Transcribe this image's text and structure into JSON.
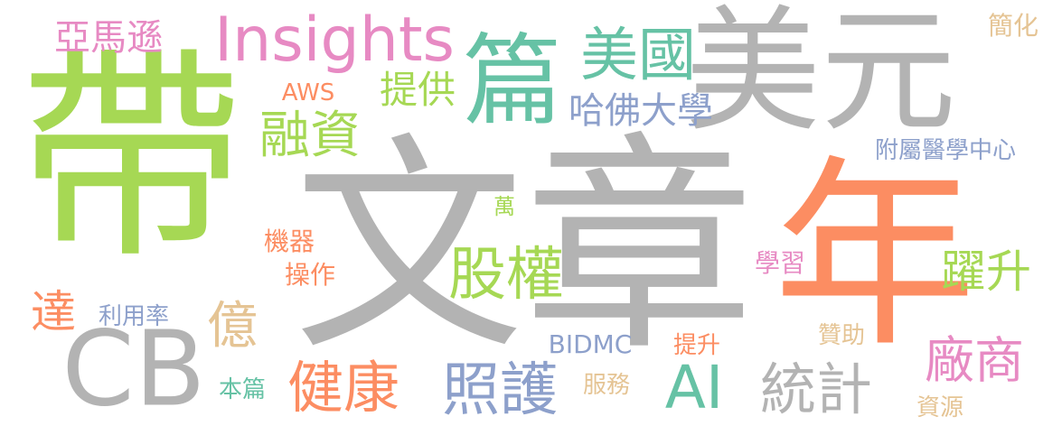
{
  "words": [
    {
      "text": "文章",
      "color": "#b3b3b3"
    },
    {
      "text": "帶",
      "color": "#a6d854"
    },
    {
      "text": "年",
      "color": "#fc8d62"
    },
    {
      "text": "美元",
      "color": "#b3b3b3"
    },
    {
      "text": "篇",
      "color": "#66c2a5"
    },
    {
      "text": "CB",
      "color": "#b3b3b3"
    },
    {
      "text": "Insights",
      "color": "#e78ac3"
    },
    {
      "text": "美國",
      "color": "#66c2a5"
    },
    {
      "text": "股權",
      "color": "#a6d854"
    },
    {
      "text": "照護",
      "color": "#8da0cb"
    },
    {
      "text": "健康",
      "color": "#fc8d62"
    },
    {
      "text": "統計",
      "color": "#b3b3b3"
    },
    {
      "text": "AI",
      "color": "#66c2a5"
    },
    {
      "text": "廠商",
      "color": "#e78ac3"
    },
    {
      "text": "融資",
      "color": "#a6d854"
    },
    {
      "text": "億",
      "color": "#e5c494"
    },
    {
      "text": "達",
      "color": "#fc8d62"
    },
    {
      "text": "躍升",
      "color": "#a6d854"
    },
    {
      "text": "亞馬遜",
      "color": "#e78ac3"
    },
    {
      "text": "提供",
      "color": "#a6d854"
    },
    {
      "text": "哈佛大學",
      "color": "#8da0cb"
    },
    {
      "text": "附屬醫學中心",
      "color": "#8da0cb"
    },
    {
      "text": "AWS",
      "color": "#fc8d62"
    },
    {
      "text": "簡化",
      "color": "#e5c494"
    },
    {
      "text": "萬",
      "color": "#a6d854"
    },
    {
      "text": "機器",
      "color": "#fc8d62"
    },
    {
      "text": "操作",
      "color": "#fc8d62"
    },
    {
      "text": "學習",
      "color": "#e78ac3"
    },
    {
      "text": "利用率",
      "color": "#8da0cb"
    },
    {
      "text": "BIDMC",
      "color": "#8da0cb"
    },
    {
      "text": "提升",
      "color": "#fc8d62"
    },
    {
      "text": "贊助",
      "color": "#e5c494"
    },
    {
      "text": "本篇",
      "color": "#66c2a5"
    },
    {
      "text": "服務",
      "color": "#e5c494"
    },
    {
      "text": "資源",
      "color": "#e5c494"
    }
  ]
}
